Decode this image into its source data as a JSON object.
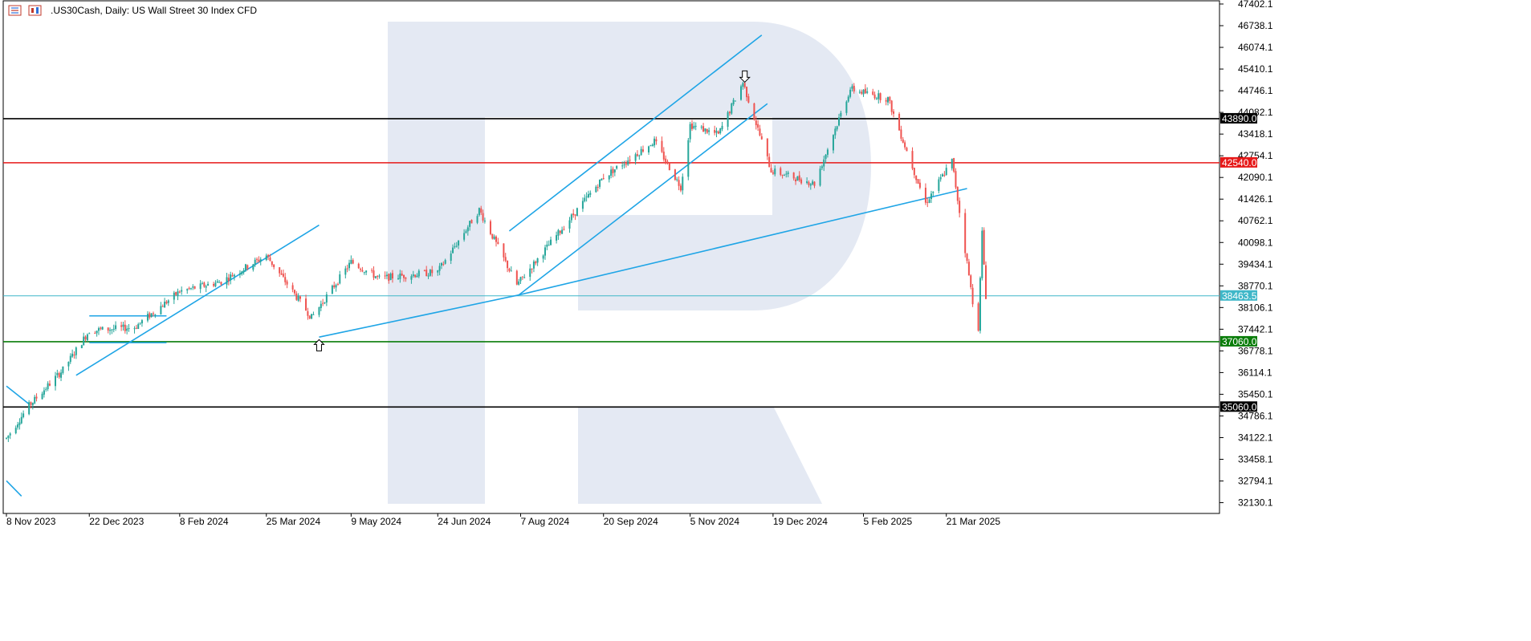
{
  "header": {
    "title": ".US30Cash, Daily:  US Wall Street 30 Index CFD",
    "icons": [
      "candles-list-icon",
      "chart-type-icon"
    ]
  },
  "colors": {
    "bull": "#26a69a",
    "bear": "#ef5350",
    "trendline": "#1fa5e6",
    "resistance_black": "#000000",
    "resistance_red": "#e61919",
    "support_green": "#0a7d0a",
    "current_price": "#3fb7c8",
    "watermark": "#e4e9f3"
  },
  "chart_data": {
    "type": "candlestick",
    "title": ".US30Cash, Daily:  US Wall Street 30 Index CFD",
    "ylim": [
      31800,
      47500
    ],
    "y_ticks": [
      "47402.1",
      "46738.1",
      "46074.1",
      "45410.1",
      "44746.1",
      "44082.1",
      "43418.1",
      "42754.1",
      "42090.1",
      "41426.1",
      "40762.1",
      "40098.1",
      "39434.1",
      "38770.1",
      "38106.1",
      "37442.1",
      "36778.1",
      "36114.1",
      "35450.1",
      "34786.1",
      "34122.1",
      "33458.1",
      "32794.1",
      "32130.1"
    ],
    "x_ticks": [
      "8 Nov 2023",
      "22 Dec 2023",
      "8 Feb 2024",
      "25 Mar 2024",
      "9 May 2024",
      "24 Jun 2024",
      "7 Aug 2024",
      "20 Sep 2024",
      "5 Nov 2024",
      "19 Dec 2024",
      "5 Feb 2025",
      "21 Mar 2025"
    ],
    "date_range": [
      "8 Nov 2023",
      "11 Apr 2025"
    ],
    "anchors": [
      [
        "8 Nov 2023",
        34100
      ],
      [
        "20 Nov 2023",
        35100
      ],
      [
        "8 Dec 2023",
        36200
      ],
      [
        "22 Dec 2023",
        37400
      ],
      [
        "15 Jan 2024",
        37500
      ],
      [
        "8 Feb 2024",
        38600
      ],
      [
        "1 Mar 2024",
        38900
      ],
      [
        "25 Mar 2024",
        39700
      ],
      [
        "18 Apr 2024",
        37800
      ],
      [
        "9 May 2024",
        39500
      ],
      [
        "24 May 2024",
        39000
      ],
      [
        "24 Jun 2024",
        39200
      ],
      [
        "16 Jul 2024",
        41100
      ],
      [
        "5 Aug 2024",
        38800
      ],
      [
        "20 Sep 2024",
        42100
      ],
      [
        "17 Oct 2024",
        43200
      ],
      [
        "31 Oct 2024",
        41800
      ],
      [
        "5 Nov 2024",
        43700
      ],
      [
        "20 Nov 2024",
        43400
      ],
      [
        "3 Dec 2024",
        45000
      ],
      [
        "18 Dec 2024",
        42300
      ],
      [
        "10 Jan 2025",
        41900
      ],
      [
        "29 Jan 2025",
        44800
      ],
      [
        "18 Feb 2025",
        44500
      ],
      [
        "10 Mar 2025",
        41300
      ],
      [
        "24 Mar 2025",
        42600
      ],
      [
        "4 Apr 2025",
        38300
      ],
      [
        "7 Apr 2025",
        37500
      ],
      [
        "9 Apr 2025",
        40400
      ],
      [
        "11 Apr 2025",
        38460
      ]
    ],
    "horizontal_levels": [
      {
        "name": "resistance-black",
        "value": 43890.0,
        "label": "43890.0",
        "color": "#000000"
      },
      {
        "name": "resistance-red",
        "value": 42540.0,
        "label": "42540.0",
        "color": "#e61919"
      },
      {
        "name": "current-price",
        "value": 38463.5,
        "label": "38463.5",
        "color": "#3fb7c8"
      },
      {
        "name": "support-green",
        "value": 37060.0,
        "label": "37060.0",
        "color": "#0a7d0a"
      },
      {
        "name": "support-black",
        "value": 35060.0,
        "label": "35060.0",
        "color": "#000000"
      }
    ],
    "trendlines": [
      {
        "from": [
          "8 Nov 2023",
          35700
        ],
        "to": [
          "20 Nov 2023",
          35150
        ]
      },
      {
        "from": [
          "8 Nov 2023",
          32800
        ],
        "to": [
          "16 Nov 2023",
          32330
        ]
      },
      {
        "from": [
          "15 Dec 2023",
          36030
        ],
        "to": [
          "22 Apr 2024",
          40630
        ]
      },
      {
        "from": [
          "22 Apr 2024",
          37200
        ],
        "to": [
          "6 Aug 2024",
          38490
        ]
      },
      {
        "from": [
          "6 Aug 2024",
          38490
        ],
        "to": [
          "1 Apr 2025",
          41750
        ]
      },
      {
        "from": [
          "1 Aug 2024",
          40450
        ],
        "to": [
          "13 Dec 2024",
          46450
        ]
      },
      {
        "from": [
          "6 Aug 2024",
          38490
        ],
        "to": [
          "16 Dec 2024",
          44350
        ]
      },
      {
        "from": [
          "22 Dec 2023",
          37850
        ],
        "to": [
          "1 Feb 2024",
          37850
        ]
      },
      {
        "from": [
          "22 Dec 2023",
          37030
        ],
        "to": [
          "1 Feb 2024",
          37030
        ]
      }
    ],
    "arrows": [
      {
        "name": "arrow-up",
        "date": "22 Apr 2024",
        "value": 36950,
        "direction": "up"
      },
      {
        "name": "arrow-down",
        "date": "4 Dec 2024",
        "value": 45180,
        "direction": "down"
      }
    ]
  }
}
